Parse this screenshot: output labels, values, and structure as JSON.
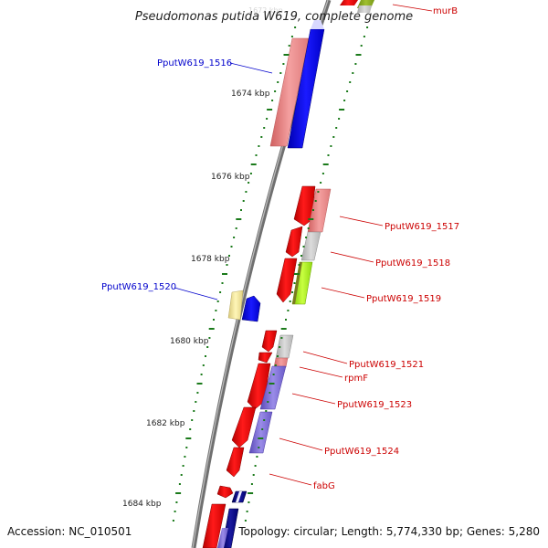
{
  "title": "Pseudomonas putida W619, complete genome",
  "faint_label": "1672 kbp",
  "footer": {
    "accession": "Accession: NC_010501",
    "summary": "Topology: circular; Length: 5,774,330 bp; Genes: 5,280"
  },
  "colors": {
    "backbone": "#7a7a7a",
    "tick": "#1a7a1a",
    "plus_label": "#cc0000",
    "minus_label": "#0000cc"
  },
  "kbp_labels": [
    "1674 kbp",
    "1676 kbp",
    "1678 kbp",
    "1680 kbp",
    "1682 kbp",
    "1684 kbp"
  ],
  "plus_labels": [
    "murB",
    "PputW619_1517",
    "PputW619_1518",
    "PputW619_1519",
    "PputW619_1521",
    "rpmF",
    "PputW619_1523",
    "PputW619_1524",
    "fabG"
  ],
  "minus_labels": [
    "PputW619_1516",
    "PputW619_1520"
  ]
}
